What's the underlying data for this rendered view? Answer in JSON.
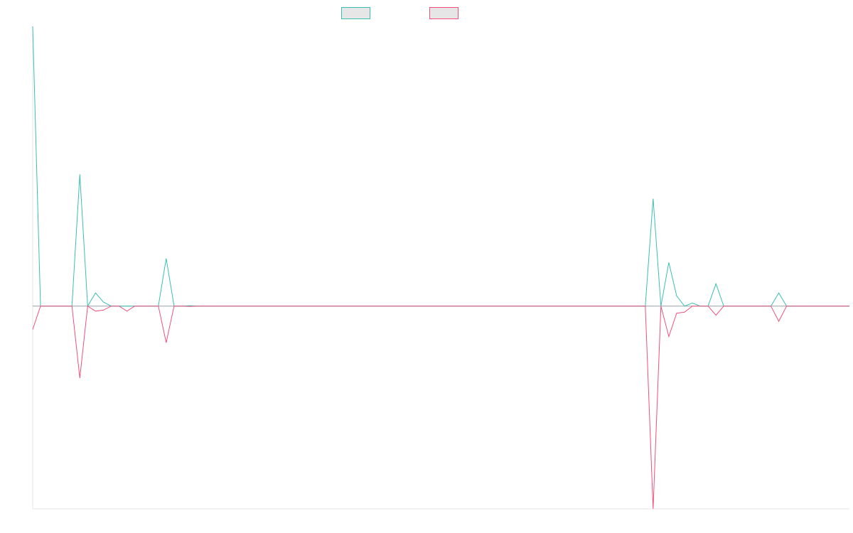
{
  "chart_data": {
    "type": "line",
    "title": "",
    "xlabel": "",
    "ylabel": "",
    "ylim": [
      -1.0,
      1.38
    ],
    "grid": false,
    "legend": "top-center",
    "x": [
      0,
      1,
      2,
      3,
      4,
      5,
      6,
      7,
      8,
      9,
      10,
      11,
      12,
      13,
      14,
      15,
      16,
      17,
      18,
      19,
      20,
      21,
      22,
      23,
      24,
      25,
      26,
      27,
      28,
      29,
      30,
      31,
      32,
      33,
      34,
      35,
      36,
      37,
      38,
      39,
      40,
      41,
      42,
      43,
      44,
      45,
      46,
      47,
      48,
      49,
      50,
      51,
      52,
      53,
      54,
      55,
      56,
      57,
      58,
      59,
      60,
      61,
      62,
      63,
      64,
      65,
      66,
      67,
      68,
      69,
      70,
      71,
      72,
      73,
      74,
      75,
      76,
      77,
      78,
      79,
      80,
      81,
      82,
      83,
      84,
      85,
      86,
      87,
      88,
      89,
      90,
      91,
      92,
      93,
      94,
      95,
      96,
      97,
      98,
      99,
      100,
      101,
      102,
      103,
      104
    ],
    "series": [
      {
        "color": "#3bbfb3",
        "values": [
          1.38,
          0,
          0,
          0,
          0,
          0,
          0.65,
          0,
          0.065,
          0.02,
          0,
          0,
          0,
          0,
          0,
          0,
          0,
          0.235,
          0,
          0,
          0.002,
          0,
          0,
          0,
          0,
          0,
          0,
          0,
          0,
          0,
          0,
          0,
          0,
          0,
          0,
          0,
          0,
          0,
          0,
          0,
          0,
          0,
          0,
          0,
          0,
          0,
          0,
          0,
          0,
          0,
          0,
          0,
          0,
          0,
          0,
          0,
          0,
          0,
          0,
          0,
          0,
          0,
          0,
          0,
          0,
          0,
          0,
          0,
          0,
          0,
          0,
          0,
          0,
          0,
          0,
          0,
          0,
          0,
          0,
          0.53,
          0,
          0.215,
          0.05,
          0,
          0.015,
          0,
          0,
          0.11,
          0,
          0,
          0,
          0,
          0,
          0,
          0,
          0.065,
          0,
          0,
          0,
          0,
          0,
          0,
          0,
          0,
          0
        ]
      },
      {
        "color": "#f0507a",
        "values": [
          -0.115,
          0,
          0,
          0,
          0,
          0,
          -0.355,
          0,
          -0.025,
          -0.02,
          0,
          0,
          -0.025,
          0,
          0,
          0,
          0,
          -0.18,
          0,
          0,
          -0.002,
          0,
          0,
          0,
          0,
          0,
          0,
          0,
          0,
          0,
          0,
          0,
          0,
          0,
          0,
          0,
          0,
          0,
          0,
          0,
          0,
          0,
          0,
          0,
          0,
          0,
          0,
          0,
          0,
          0,
          0,
          0,
          0,
          0,
          0,
          0,
          0,
          0,
          0,
          0,
          0,
          0,
          0,
          0,
          0,
          0,
          0,
          0,
          0,
          0,
          0,
          0,
          0,
          0,
          0,
          0,
          0,
          0,
          0,
          -1.0,
          0,
          -0.15,
          -0.035,
          -0.03,
          0,
          0,
          0,
          -0.045,
          0,
          0,
          0,
          0,
          0,
          0,
          0,
          -0.075,
          0,
          0,
          0,
          0,
          0,
          0,
          0,
          0,
          0
        ]
      }
    ]
  }
}
